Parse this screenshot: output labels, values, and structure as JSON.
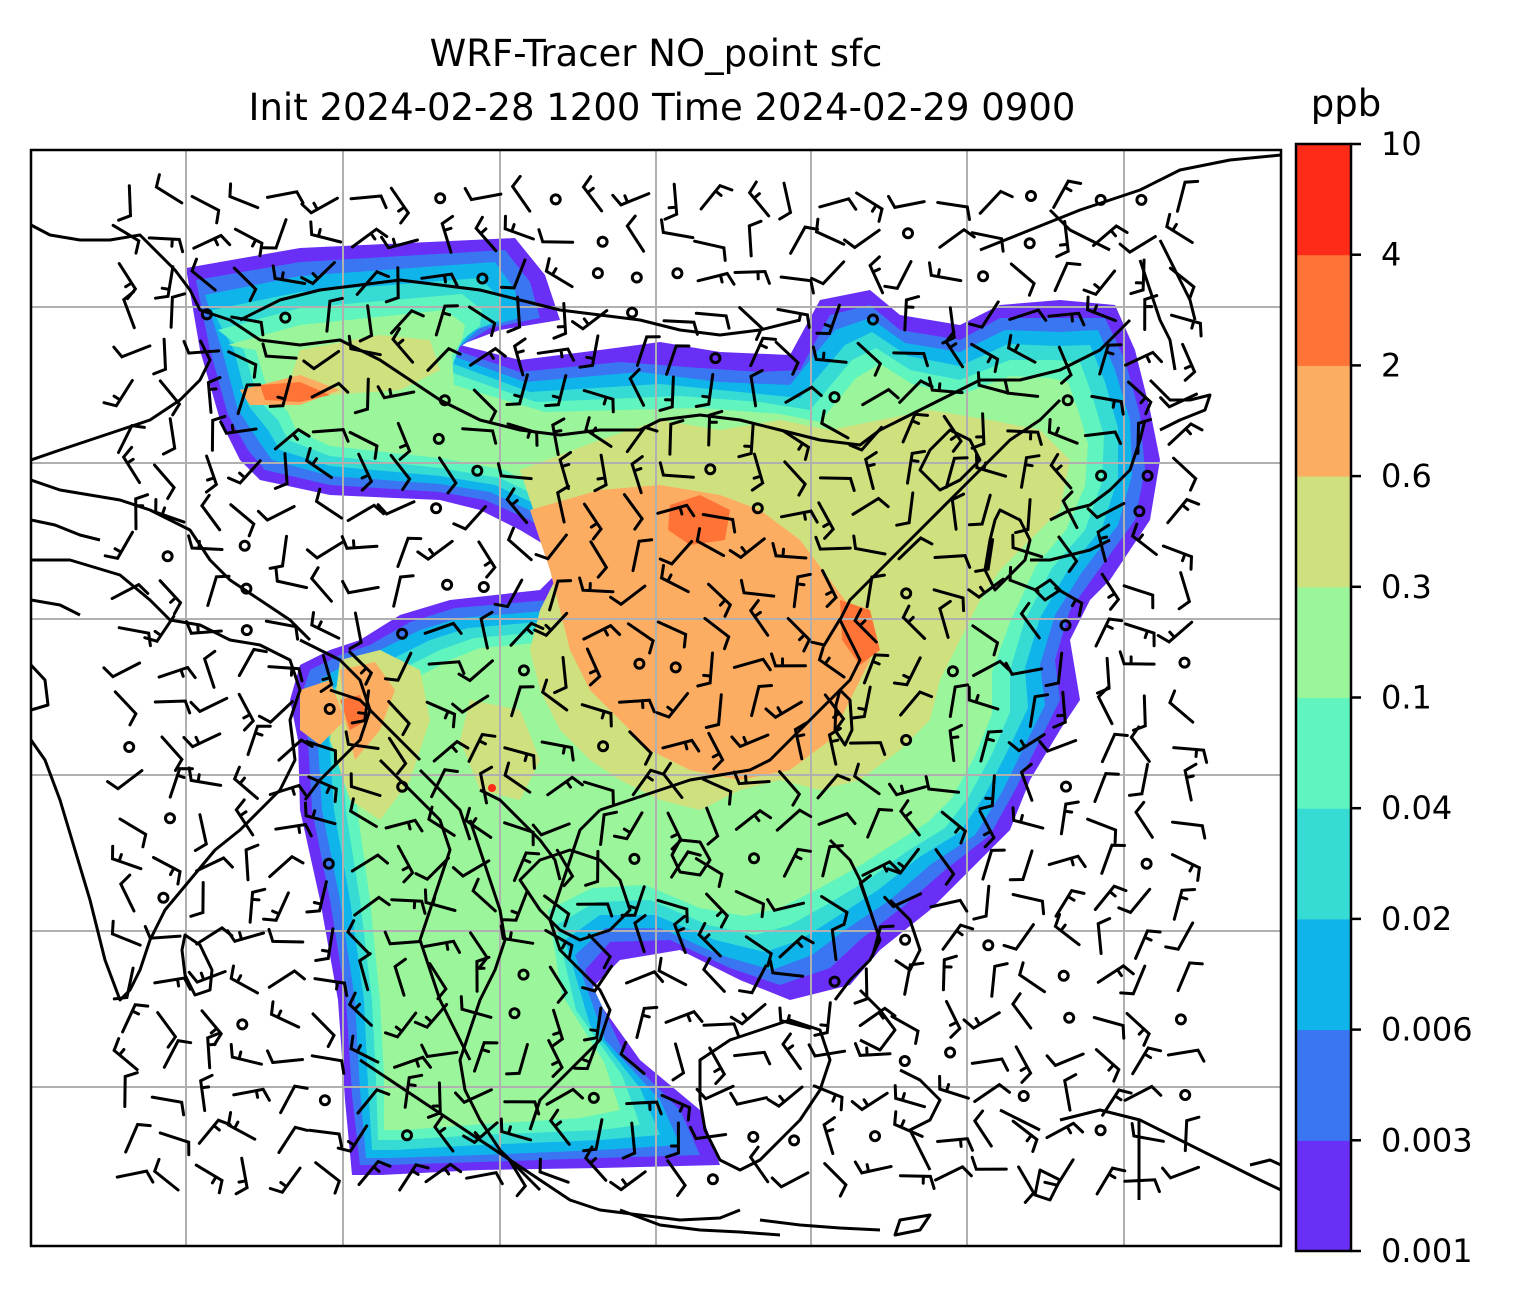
{
  "figure": {
    "title_line1": "WRF-Tracer NO_point sfc",
    "title_line2": "Init 2024-02-28 1200 Time 2024-02-29 0900"
  },
  "colorbar": {
    "unit": "ppb",
    "levels": [
      "0.001",
      "0.003",
      "0.006",
      "0.02",
      "0.04",
      "0.1",
      "0.3",
      "0.6",
      "2",
      "4",
      "10"
    ],
    "colors": [
      "#6a2ff6",
      "#3a76f2",
      "#0fb4ea",
      "#36dcd4",
      "#60f5be",
      "#9bf59a",
      "#cfe07e",
      "#fdad62",
      "#ff7436",
      "#fd2b17"
    ]
  },
  "map": {
    "field": "NO_point surface tracer concentration",
    "overlays": [
      "coastlines",
      "gridlines",
      "wind-barbs",
      "calm-wind-circles"
    ]
  }
}
